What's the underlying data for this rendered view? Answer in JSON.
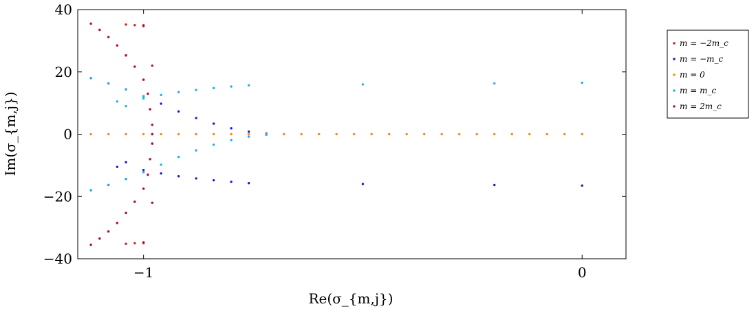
{
  "chart_data": {
    "type": "scatter",
    "title": "",
    "xlabel": "Re(σ_{m,j})",
    "ylabel": "Im(σ_{m,j})",
    "xlim": [
      -1.15,
      0.1
    ],
    "ylim": [
      -40,
      40
    ],
    "xticks": [
      -1,
      0
    ],
    "xtick_labels": [
      "−1",
      "0"
    ],
    "yticks": [
      -40,
      -20,
      0,
      20,
      40
    ],
    "ytick_labels": [
      "−40",
      "−20",
      "0",
      "20",
      "40"
    ],
    "grid": false,
    "legend_position": "outside-right-top",
    "series": [
      {
        "name": "m = −2m_c",
        "color": "#e31a1c",
        "points": [
          [
            -1.12,
            35.5
          ],
          [
            -1.1,
            33.5
          ],
          [
            -1.08,
            31.2
          ],
          [
            -1.06,
            28.5
          ],
          [
            -1.04,
            25.3
          ],
          [
            -1.02,
            21.7
          ],
          [
            -1.0,
            17.5
          ],
          [
            -0.99,
            13.0
          ],
          [
            -0.985,
            8.0
          ],
          [
            -0.98,
            3.0
          ],
          [
            -0.98,
            0.0
          ],
          [
            -0.98,
            -3.0
          ],
          [
            -0.985,
            -8.0
          ],
          [
            -0.99,
            -13.0
          ],
          [
            -1.0,
            -17.5
          ],
          [
            -1.02,
            -21.7
          ],
          [
            -1.04,
            -25.3
          ],
          [
            -1.06,
            -28.5
          ],
          [
            -1.08,
            -31.2
          ],
          [
            -1.1,
            -33.5
          ],
          [
            -1.12,
            -35.5
          ],
          [
            -1.04,
            35.2
          ],
          [
            -1.02,
            35.0
          ],
          [
            -1.0,
            35.0
          ],
          [
            -1.04,
            -35.2
          ],
          [
            -1.02,
            -35.0
          ],
          [
            -1.0,
            -35.0
          ]
        ]
      },
      {
        "name": "m = −m_c",
        "color": "#1a1ad6",
        "points": [
          [
            -1.12,
            18.0
          ],
          [
            -1.08,
            16.3
          ],
          [
            -1.04,
            14.4
          ],
          [
            -1.0,
            12.2
          ],
          [
            -0.96,
            9.8
          ],
          [
            -0.92,
            7.3
          ],
          [
            -0.88,
            5.2
          ],
          [
            -0.84,
            3.4
          ],
          [
            -0.8,
            1.9
          ],
          [
            -0.76,
            0.8
          ],
          [
            -0.72,
            0.2
          ],
          [
            -1.12,
            -18.0
          ],
          [
            -1.08,
            -16.3
          ],
          [
            -1.04,
            -14.4
          ],
          [
            -1.0,
            -12.2
          ],
          [
            -1.06,
            -10.5
          ],
          [
            -1.04,
            -9.0
          ],
          [
            -1.0,
            -11.5
          ],
          [
            -0.96,
            -12.6
          ],
          [
            -0.92,
            -13.5
          ],
          [
            -0.88,
            -14.2
          ],
          [
            -0.84,
            -14.8
          ],
          [
            -0.8,
            -15.3
          ],
          [
            -0.76,
            -15.7
          ],
          [
            -0.5,
            -16.0
          ],
          [
            -0.2,
            -16.3
          ],
          [
            0.0,
            -16.5
          ]
        ]
      },
      {
        "name": "m = 0",
        "color": "#ff8c00",
        "points": [
          [
            -1.12,
            0
          ],
          [
            -1.08,
            0
          ],
          [
            -1.04,
            0
          ],
          [
            -1.0,
            0
          ],
          [
            -0.96,
            0
          ],
          [
            -0.92,
            0
          ],
          [
            -0.88,
            0
          ],
          [
            -0.84,
            0
          ],
          [
            -0.8,
            0
          ],
          [
            -0.76,
            0
          ],
          [
            -0.72,
            0
          ],
          [
            -0.68,
            0
          ],
          [
            -0.64,
            0
          ],
          [
            -0.6,
            0
          ],
          [
            -0.56,
            0
          ],
          [
            -0.52,
            0
          ],
          [
            -0.48,
            0
          ],
          [
            -0.44,
            0
          ],
          [
            -0.4,
            0
          ],
          [
            -0.36,
            0
          ],
          [
            -0.32,
            0
          ],
          [
            -0.28,
            0
          ],
          [
            -0.24,
            0
          ],
          [
            -0.2,
            0
          ],
          [
            -0.16,
            0
          ],
          [
            -0.12,
            0
          ],
          [
            -0.08,
            0
          ],
          [
            -0.04,
            0
          ],
          [
            0.0,
            0
          ]
        ]
      },
      {
        "name": "m = m_c",
        "color": "#1ab4e6",
        "points": [
          [
            -1.12,
            -18.0
          ],
          [
            -1.08,
            -16.3
          ],
          [
            -1.04,
            -14.4
          ],
          [
            -1.0,
            -12.2
          ],
          [
            -0.96,
            -9.8
          ],
          [
            -0.92,
            -7.3
          ],
          [
            -0.88,
            -5.2
          ],
          [
            -0.84,
            -3.4
          ],
          [
            -0.8,
            -1.9
          ],
          [
            -0.76,
            -0.8
          ],
          [
            -0.72,
            -0.2
          ],
          [
            -1.12,
            18.0
          ],
          [
            -1.08,
            16.3
          ],
          [
            -1.04,
            14.4
          ],
          [
            -1.0,
            12.2
          ],
          [
            -1.06,
            10.5
          ],
          [
            -1.04,
            9.0
          ],
          [
            -1.0,
            11.5
          ],
          [
            -0.96,
            12.6
          ],
          [
            -0.92,
            13.5
          ],
          [
            -0.88,
            14.2
          ],
          [
            -0.84,
            14.8
          ],
          [
            -0.8,
            15.3
          ],
          [
            -0.76,
            15.7
          ],
          [
            -0.5,
            16.0
          ],
          [
            -0.2,
            16.3
          ],
          [
            0.0,
            16.5
          ]
        ]
      },
      {
        "name": "m = 2m_c",
        "color": "#b0104a",
        "points": [
          [
            -1.12,
            -35.5
          ],
          [
            -1.1,
            -33.5
          ],
          [
            -1.08,
            -31.2
          ],
          [
            -1.06,
            -28.5
          ],
          [
            -1.04,
            -25.3
          ],
          [
            -1.02,
            -21.7
          ],
          [
            -1.0,
            -17.5
          ],
          [
            -0.99,
            -13.0
          ],
          [
            -0.985,
            -8.0
          ],
          [
            -0.98,
            -3.0
          ],
          [
            -0.98,
            0.0
          ],
          [
            -0.98,
            3.0
          ],
          [
            -0.985,
            8.0
          ],
          [
            -0.99,
            13.0
          ],
          [
            -1.0,
            17.5
          ],
          [
            -1.02,
            21.7
          ],
          [
            -1.04,
            25.3
          ],
          [
            -1.06,
            28.5
          ],
          [
            -1.08,
            31.2
          ],
          [
            -1.1,
            33.5
          ],
          [
            -1.12,
            35.5
          ],
          [
            -1.0,
            34.7
          ],
          [
            -1.0,
            -34.7
          ],
          [
            -0.98,
            -22.0
          ],
          [
            -0.98,
            22.0
          ]
        ]
      }
    ]
  }
}
